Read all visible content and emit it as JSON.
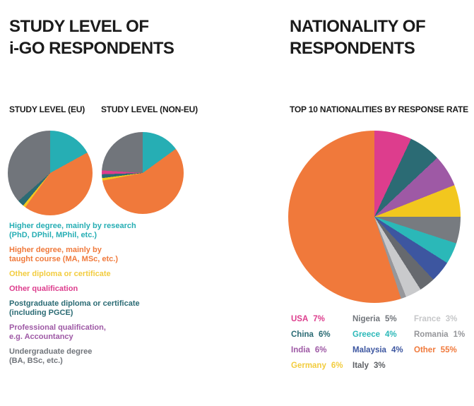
{
  "left_section": {
    "title_line1": "STUDY LEVEL OF",
    "title_line2": "i-GO RESPONDENTS",
    "chart_eu_label": "STUDY LEVEL (EU)",
    "chart_noneu_label": "STUDY LEVEL (NON-EU)",
    "legend": [
      {
        "lines": [
          "Higher degree, mainly by research",
          "(PhD, DPhil, MPhil, etc.)"
        ],
        "color": "#26aeb4"
      },
      {
        "lines": [
          "Higher degree, mainly by",
          "taught course (MA, MSc, etc.)"
        ],
        "color": "#f0793b"
      },
      {
        "lines": [
          "Other diploma or certificate"
        ],
        "color": "#f2cc3e"
      },
      {
        "lines": [
          "Other qualification"
        ],
        "color": "#dd3d8d"
      },
      {
        "lines": [
          "Postgraduate diploma or certificate",
          "(including PGCE)"
        ],
        "color": "#2b6b74"
      },
      {
        "lines": [
          "Professional qualification,",
          "e.g. Accountancy"
        ],
        "color": "#9e59a5"
      },
      {
        "lines": [
          "Undergraduate degree",
          "(BA, BSc, etc.)"
        ],
        "color": "#71757b"
      }
    ]
  },
  "right_section": {
    "title_line1": "NATIONALITY OF",
    "title_line2": "RESPONDENTS",
    "chart_label": "TOP 10 NATIONALITIES BY RESPONSE RATE",
    "legend_columns": [
      [
        {
          "label": "USA",
          "value": "7%",
          "color": "#dd3d8d"
        },
        {
          "label": "China",
          "value": "6%",
          "color": "#2b6b74"
        },
        {
          "label": "India",
          "value": "6%",
          "color": "#9e59a5"
        },
        {
          "label": "Germany",
          "value": "6%",
          "color": "#f2cc3e"
        }
      ],
      [
        {
          "label": "Nigeria",
          "value": "5%",
          "color": "#71757b"
        },
        {
          "label": "Greece",
          "value": "4%",
          "color": "#2bb8b8"
        },
        {
          "label": "Malaysia",
          "value": "4%",
          "color": "#3d56a0"
        },
        {
          "label": "Italy",
          "value": "3%",
          "color": "#5e6165"
        }
      ],
      [
        {
          "label": "France",
          "value": "3%",
          "color": "#c6c7c9"
        },
        {
          "label": "Romania",
          "value": "1%",
          "color": "#95969a"
        },
        {
          "label": "Other",
          "value": "55%",
          "color": "#f0793b"
        }
      ]
    ]
  },
  "chart_data": [
    {
      "type": "pie",
      "title": "STUDY LEVEL (EU)",
      "labels": [
        "Higher degree, mainly by research (PhD, DPhil, MPhil, etc.)",
        "Higher degree, mainly by taught course (MA, MSc, etc.)",
        "Other diploma or certificate",
        "Postgraduate diploma or certificate (including PGCE)",
        "Undergraduate degree (BA, BSc, etc.)"
      ],
      "values": [
        17,
        43,
        1,
        2.5,
        36.5
      ],
      "colors": [
        "#26aeb4",
        "#f0793b",
        "#f2c71e",
        "#2b6b74",
        "#71757b"
      ],
      "start_angle_deg": 0,
      "legend_position": "below-left"
    },
    {
      "type": "pie",
      "title": "STUDY LEVEL (NON-EU)",
      "labels": [
        "Higher degree, mainly by research (PhD, DPhil, MPhil, etc.)",
        "Higher degree, mainly by taught course (MA, MSc, etc.)",
        "Other diploma or certificate",
        "Postgraduate diploma or certificate (including PGCE)",
        "Other qualification",
        "Undergraduate degree (BA, BSc, etc.)"
      ],
      "values": [
        15,
        57,
        1,
        1.5,
        1.5,
        24
      ],
      "colors": [
        "#26aeb4",
        "#f0793b",
        "#f2c71e",
        "#2b6b74",
        "#dd3d8d",
        "#71757b"
      ],
      "start_angle_deg": 0,
      "legend_position": "below-left"
    },
    {
      "type": "pie",
      "title": "TOP 10 NATIONALITIES BY RESPONSE RATE",
      "labels": [
        "USA",
        "China",
        "India",
        "Germany",
        "Nigeria",
        "Greece",
        "Malaysia",
        "Italy",
        "France",
        "Romania",
        "Other"
      ],
      "values": [
        7,
        6,
        6,
        6,
        5,
        4,
        4,
        3,
        3,
        1,
        55
      ],
      "colors": [
        "#dd3d8d",
        "#2b6b74",
        "#9e59a5",
        "#f2c71e",
        "#777b80",
        "#2bb8b8",
        "#3d56a0",
        "#66696e",
        "#c9cacc",
        "#96979b",
        "#f0793b"
      ],
      "start_angle_deg": 0,
      "legend_position": "below-columns"
    }
  ]
}
